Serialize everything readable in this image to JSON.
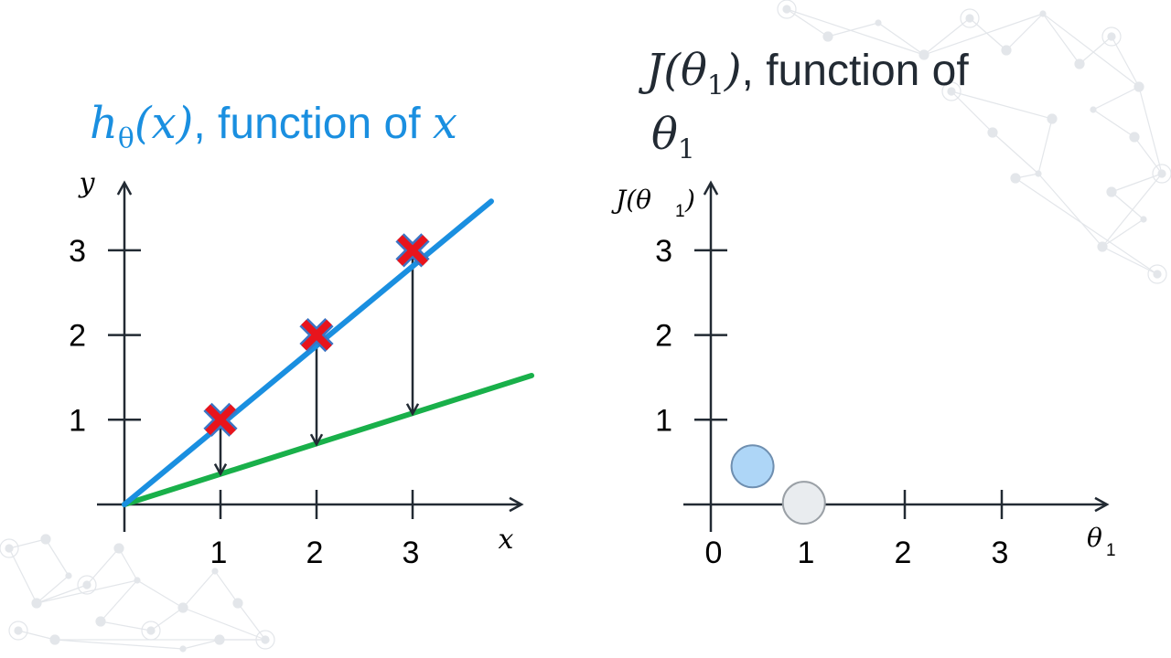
{
  "left_title": {
    "math": "h",
    "sub": "θ",
    "math2": "(x)",
    "rest": ", function of ",
    "var": "x"
  },
  "right_title": {
    "math": "J(θ",
    "sub": "1",
    "math2": ")",
    "rest": ", function of",
    "line2_math": "θ",
    "line2_sub": "1"
  },
  "colors": {
    "hypothesis_line": "#1a8fe0",
    "candidate_line": "#19b04a",
    "data_marker": "#e8141c",
    "data_marker_outline": "#3b74c4",
    "cost_point_current": "#aed6f7",
    "cost_point_next": "#e9ecef",
    "axis": "#222a33"
  },
  "chart_data": [
    {
      "type": "scatter",
      "title": "hθ(x), function of x",
      "xlabel": "x",
      "ylabel": "y",
      "xlim": [
        0,
        4
      ],
      "ylim": [
        0,
        3.6
      ],
      "x_ticks": [
        1,
        2,
        3
      ],
      "y_ticks": [
        1,
        2,
        3
      ],
      "grid": false,
      "series": [
        {
          "kind": "points",
          "marker": "x",
          "x": [
            1,
            2,
            3
          ],
          "y": [
            1,
            2,
            3
          ]
        },
        {
          "kind": "line",
          "x": [
            0,
            3.8
          ],
          "y": [
            0,
            3.6
          ]
        },
        {
          "kind": "line",
          "x": [
            0,
            4.2
          ],
          "y": [
            0,
            1.5
          ]
        },
        {
          "kind": "arrows",
          "x": [
            1,
            2,
            3
          ],
          "y_from": [
            1,
            2,
            3
          ],
          "y_to": [
            0.36,
            0.71,
            1.07
          ]
        }
      ]
    },
    {
      "type": "scatter",
      "title": "J(θ1), function of θ1",
      "xlabel": "θ1",
      "ylabel": "J(θ1)",
      "xlim": [
        0,
        4
      ],
      "ylim": [
        0,
        3.6
      ],
      "x_ticks": [
        1,
        2,
        3
      ],
      "x_tick_labels": [
        "1",
        "2",
        "3"
      ],
      "origin_label": "0",
      "y_ticks": [
        1,
        2,
        3
      ],
      "grid": false,
      "series": [
        {
          "kind": "points",
          "x": [
            0.43,
            0.96
          ],
          "y": [
            0.45,
            0.02
          ]
        }
      ]
    }
  ]
}
